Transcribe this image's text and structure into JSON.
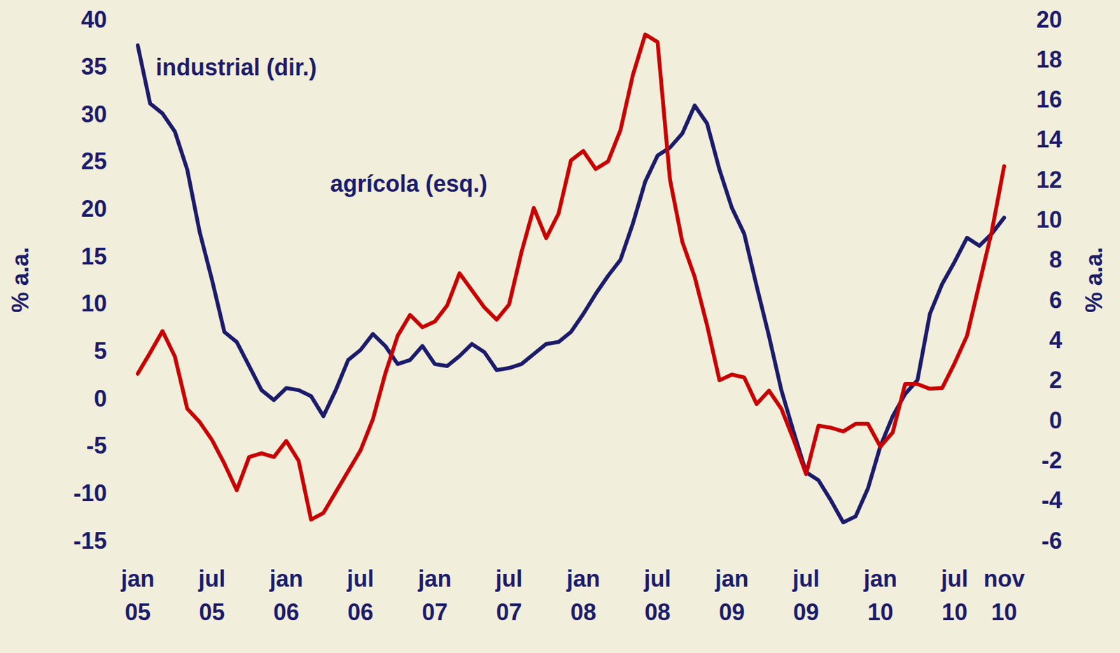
{
  "chart_data": {
    "type": "line",
    "y_label": "% a.a.",
    "y2_label": "% a.a.",
    "categories": [
      "jan 05",
      null,
      null,
      null,
      null,
      null,
      "jul 05",
      null,
      null,
      null,
      null,
      null,
      "jan 06",
      null,
      null,
      null,
      null,
      null,
      "jul 06",
      null,
      null,
      null,
      null,
      null,
      "jan 07",
      null,
      null,
      null,
      null,
      null,
      "jul 07",
      null,
      null,
      null,
      null,
      null,
      "jan 08",
      null,
      null,
      null,
      null,
      null,
      "jul 08",
      null,
      null,
      null,
      null,
      null,
      "jan 09",
      null,
      null,
      null,
      null,
      null,
      "jul 09",
      null,
      null,
      null,
      null,
      null,
      "jan 10",
      null,
      null,
      null,
      null,
      null,
      "jul 10",
      null,
      null,
      null,
      "nov 10"
    ],
    "series": [
      {
        "name": "industrial (dir.)",
        "color": "#1b1b6b",
        "axis": "y2",
        "values": [
          18.7,
          15.8,
          15.3,
          14.4,
          12.5,
          9.4,
          7.0,
          4.4,
          3.9,
          2.7,
          1.5,
          1.0,
          1.6,
          1.5,
          1.2,
          0.2,
          1.5,
          3.0,
          3.5,
          4.3,
          3.7,
          2.8,
          3.0,
          3.7,
          2.8,
          2.7,
          3.2,
          3.8,
          3.4,
          2.5,
          2.6,
          2.8,
          3.3,
          3.8,
          3.9,
          4.4,
          5.3,
          6.3,
          7.2,
          8.0,
          9.8,
          11.9,
          13.2,
          13.6,
          14.3,
          15.7,
          14.8,
          12.5,
          10.6,
          9.3,
          6.7,
          4.2,
          1.5,
          -0.6,
          -2.6,
          -3.0,
          -4.0,
          -5.1,
          -4.8,
          -3.4,
          -1.3,
          0.2,
          1.3,
          2.0,
          5.3,
          6.8,
          7.9,
          9.1,
          8.7,
          9.3,
          10.1
        ]
      },
      {
        "name": "agrícola (esq.)",
        "color": "#c80000",
        "axis": "y",
        "values": [
          2.6,
          4.8,
          7.1,
          4.4,
          -1.1,
          -2.5,
          -4.4,
          -6.9,
          -9.7,
          -6.2,
          -5.8,
          -6.2,
          -4.5,
          -6.6,
          -12.8,
          -12.1,
          -9.9,
          -7.7,
          -5.5,
          -2.2,
          2.6,
          6.6,
          8.8,
          7.5,
          8.1,
          9.8,
          13.2,
          11.4,
          9.6,
          8.3,
          9.9,
          15.4,
          20.1,
          16.9,
          19.5,
          25.1,
          26.1,
          24.2,
          25.0,
          28.3,
          34.1,
          38.4,
          37.6,
          23.1,
          16.5,
          12.8,
          7.7,
          1.9,
          2.5,
          2.2,
          -0.6,
          0.8,
          -1.1,
          -4.4,
          -8.0,
          -2.9,
          -3.1,
          -3.5,
          -2.7,
          -2.7,
          -5.1,
          -3.6,
          1.5,
          1.5,
          1.0,
          1.1,
          3.7,
          6.6,
          12.1,
          17.6,
          24.5
        ]
      }
    ],
    "ylim": [
      -15,
      40
    ],
    "yticks": [
      -15,
      -10,
      -5,
      0,
      5,
      10,
      15,
      20,
      25,
      30,
      35,
      40
    ],
    "y2lim": [
      -6,
      20
    ],
    "y2ticks": [
      -6,
      -4,
      -2,
      0,
      2,
      4,
      6,
      8,
      10,
      12,
      14,
      16,
      18,
      20
    ],
    "grid": false
  }
}
